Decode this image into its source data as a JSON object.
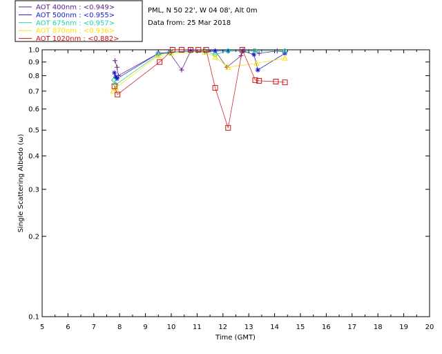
{
  "chart_data": {
    "type": "scatter",
    "title_lines": [
      "PML, N 50 22', W 04 08', Alt 0m",
      "Data from: 25 Mar 2018"
    ],
    "xlabel": "Time (GMT)",
    "ylabel": "Single Scattering Albedo (ω)",
    "xlim": [
      5,
      20
    ],
    "ylim": [
      0.1,
      1.0
    ],
    "yscale": "log",
    "xticks": [
      5,
      6,
      7,
      8,
      9,
      10,
      11,
      12,
      13,
      14,
      15,
      16,
      17,
      18,
      19,
      20
    ],
    "yticks": [
      0.1,
      0.2,
      0.3,
      0.4,
      0.5,
      0.6,
      0.7,
      0.8,
      0.9,
      1.0
    ],
    "ytick_labels": [
      "0.1",
      "0.2",
      "0.3",
      "0.4",
      "0.5",
      "0.6",
      "0.7",
      "0.8",
      "0.9",
      "1.0"
    ],
    "legend": [
      {
        "label": "AOT  400nm : <0.949>",
        "color": "#5a1a8c"
      },
      {
        "label": "AOT  500nm : <0.955>",
        "color": "#1a1acc"
      },
      {
        "label": "AOT  675nm : <0.957>",
        "color": "#1ad2a0"
      },
      {
        "label": "AOT  870nm : <0.936>",
        "color": "#ffdd00"
      },
      {
        "label": "AOT 1020nm : <0.882>",
        "color": "#cc1111"
      }
    ],
    "series": [
      {
        "name": "AOT 400nm",
        "marker": "plus",
        "color": "#5a1a8c",
        "x": [
          7.82,
          7.9,
          7.95,
          9.5,
          9.95,
          10.4,
          10.75,
          11.3,
          11.7,
          12.15,
          12.7,
          12.8,
          13.2,
          13.4,
          14.1,
          14.4
        ],
        "y": [
          0.91,
          0.86,
          0.8,
          0.97,
          0.97,
          0.84,
          0.99,
          0.98,
          0.99,
          0.86,
          0.95,
          0.99,
          0.99,
          0.97,
          0.99,
          0.98
        ]
      },
      {
        "name": "AOT 500nm",
        "marker": "star",
        "color": "#1a1acc",
        "x": [
          7.8,
          7.85,
          7.9,
          9.5,
          9.95,
          10.75,
          11.3,
          11.7,
          12.2,
          12.75,
          13.2,
          13.35,
          14.4
        ],
        "y": [
          0.82,
          0.79,
          0.78,
          0.97,
          0.98,
          0.99,
          0.99,
          0.99,
          0.99,
          0.99,
          0.96,
          0.84,
          0.97
        ]
      },
      {
        "name": "AOT 675nm",
        "marker": "diamond",
        "color": "#1ad2a0",
        "x": [
          7.78,
          7.85,
          9.5,
          10.0,
          11.3,
          11.7,
          12.2,
          13.25,
          14.4
        ],
        "y": [
          0.77,
          0.74,
          0.96,
          0.98,
          0.99,
          0.96,
          0.99,
          0.99,
          0.99
        ]
      },
      {
        "name": "AOT 870nm",
        "marker": "triangle",
        "color": "#ffdd00",
        "x": [
          7.75,
          7.85,
          9.5,
          10.0,
          11.3,
          11.7,
          12.2,
          13.3,
          14.4
        ],
        "y": [
          0.7,
          0.72,
          0.95,
          0.97,
          0.98,
          0.94,
          0.86,
          0.89,
          0.93
        ]
      },
      {
        "name": "AOT 1020nm",
        "marker": "square",
        "color": "#cc1111",
        "x": [
          7.8,
          7.92,
          9.55,
          10.05,
          10.4,
          10.75,
          11.05,
          11.35,
          11.7,
          12.2,
          12.75,
          13.25,
          13.4,
          14.05,
          14.4
        ],
        "y": [
          0.73,
          0.68,
          0.9,
          1.0,
          1.0,
          1.0,
          1.0,
          1.0,
          0.72,
          0.51,
          1.0,
          0.77,
          0.765,
          0.76,
          0.755
        ]
      }
    ]
  }
}
